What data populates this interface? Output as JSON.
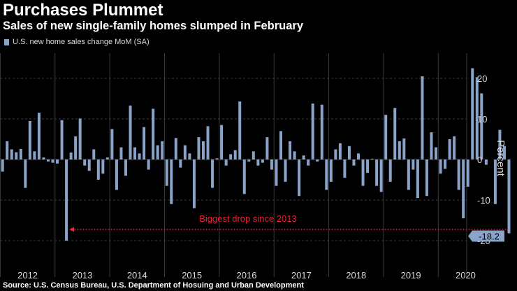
{
  "colors": {
    "background": "#000000",
    "bar": "#8aa3c8",
    "grid": "#3a3a3a",
    "annotation": "#e8233a",
    "callout_bg": "#8aa3c8"
  },
  "chart_data": {
    "type": "bar",
    "title": "Purchases Plummet",
    "subtitle": "Sales of new single-family homes slumped in February",
    "legend": [
      "U.S. new home sales change MoM (SA)"
    ],
    "ylabel": "Percent",
    "xlabel": "",
    "ylim": [
      -22,
      26
    ],
    "yticks": [
      -20,
      -10,
      0,
      10,
      20
    ],
    "ytick_labels": [
      "-20",
      "-10",
      "0",
      "10",
      "20"
    ],
    "years": [
      "2012",
      "2013",
      "2014",
      "2015",
      "2016",
      "2017",
      "2018",
      "2019",
      "2020"
    ],
    "x_start": "2012-01",
    "values": [
      -3.0,
      4.5,
      2.5,
      1.8,
      2.6,
      -7.0,
      9.5,
      2.0,
      11.5,
      0.5,
      -0.5,
      -0.8,
      -1.0,
      9.7,
      -20.0,
      1.7,
      5.7,
      10.1,
      -1.5,
      -2.8,
      2.5,
      -5.0,
      -3.5,
      0.5,
      7.5,
      -7.5,
      3.0,
      -4.0,
      13.3,
      3.0,
      1.5,
      8.0,
      -2.5,
      12.5,
      3.5,
      4.5,
      -6.5,
      -11.0,
      5.3,
      -2.0,
      3.5,
      1.5,
      -12.0,
      5.5,
      4.5,
      8.2,
      -7.0,
      0.3,
      8.5,
      -1.5,
      1.3,
      2.3,
      14.3,
      -8.5,
      -0.5,
      2.0,
      -1.5,
      -0.8,
      5.5,
      -2.5,
      -6.5,
      7.0,
      -5.5,
      4.5,
      2.0,
      -9.0,
      1.0,
      -1.5,
      13.8,
      -0.5,
      13.5,
      -7.5,
      -5.5,
      2.5,
      4.0,
      -4.5,
      3.3,
      -1.5,
      1.5,
      -6.5,
      -3.3,
      0.2,
      -6.5,
      -8.0,
      11.0,
      -5.5,
      12.7,
      4.5,
      5.2,
      -7.5,
      -2.5,
      -9.5,
      20.5,
      -9.0,
      6.7,
      3.0,
      -3.5,
      -2.3,
      5.0,
      5.7,
      -7.5,
      -14.5,
      -6.7,
      22.5,
      20.3,
      16.3,
      -1.3,
      0.0,
      -11.0,
      7.3,
      3.3,
      -18.2
    ],
    "annotations": [
      {
        "text": "Biggest drop since 2013"
      }
    ],
    "callout": {
      "text": "-18.2",
      "value": -18.2
    }
  },
  "source": "Source: U.S. Census Bureau, U.S. Department of Hosuing and Urban Development"
}
